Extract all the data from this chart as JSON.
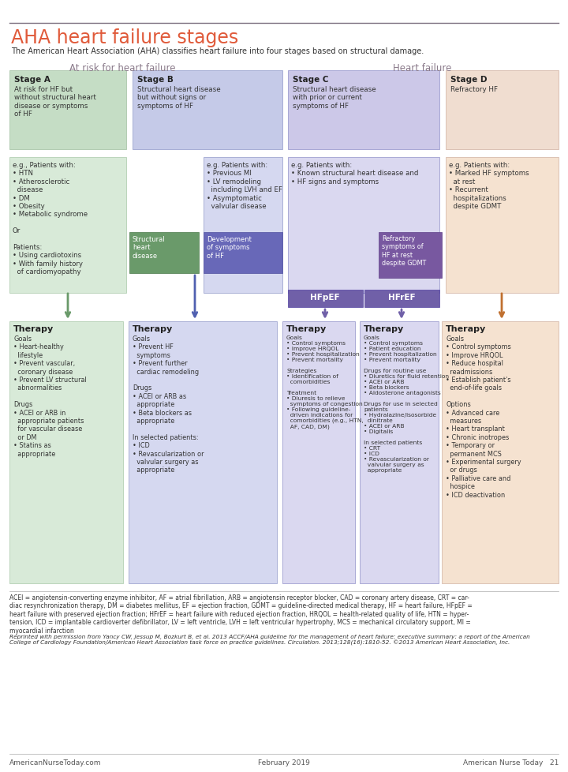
{
  "title": "AHA heart failure stages",
  "subtitle": "The American Heart Association (AHA) classifies heart failure into four stages based on structural damage.",
  "header_line_color": "#7a6e7e",
  "title_color": "#e05a3a",
  "subtitle_color": "#333333",
  "section_label_left": "At risk for heart failure",
  "section_label_right": "Heart failure",
  "section_label_color": "#8a7a8a",
  "bg_color": "#ffffff",
  "stage_boxes": [
    {
      "label": "Stage A",
      "desc": "At risk for HF but\nwithout structural heart\ndisease or symptoms\nof HF",
      "bg": "#c5ddc5",
      "border": "#a0bfa0"
    },
    {
      "label": "Stage B",
      "desc": "Structural heart disease\nbut without signs or\nsymptoms of HF",
      "bg": "#c5cae8",
      "border": "#9098c8"
    },
    {
      "label": "Stage C",
      "desc": "Structural heart disease\nwith prior or current\nsymptoms of HF",
      "bg": "#ccc8e8",
      "border": "#9090c8"
    },
    {
      "label": "Stage D",
      "desc": "Refractory HF",
      "bg": "#f0ddd0",
      "border": "#d0b0a0"
    }
  ],
  "struct_box": {
    "text": "Structural\nheart\ndisease",
    "bg": "#6a9a6a",
    "border": "#4a7a4a",
    "text_color": "#ffffff"
  },
  "dev_box": {
    "text": "Development\nof symptoms\nof HF",
    "bg": "#6868b8",
    "border": "#5050a0",
    "text_color": "#ffffff"
  },
  "refract_box": {
    "text": "Refractory\nsymptoms of\nHF at rest\ndespite GDMT",
    "bg": "#7858a0",
    "border": "#604088",
    "text_color": "#ffffff"
  },
  "hfpef_box": {
    "text": "HFpEF",
    "bg": "#7060a8",
    "border": "#5040a0",
    "text_color": "#ffffff"
  },
  "hfref_box": {
    "text": "HFrEF",
    "bg": "#7060a8",
    "border": "#5040a0",
    "text_color": "#ffffff"
  },
  "therapy_boxes": [
    {
      "title": "Therapy",
      "content": "Goals\n• Heart-healthy\n  lifestyle\n• Prevent vascular,\n  coronary disease\n• Prevent LV structural\n  abnormalities\n\nDrugs\n• ACEI or ARB in\n  appropriate patients\n  for vascular disease\n  or DM\n• Statins as\n  appropriate",
      "bg": "#d8ead8",
      "border": "#a8c8a8",
      "arrow_color": "#6a9a6a"
    },
    {
      "title": "Therapy",
      "content": "Goals\n• Prevent HF\n  symptoms\n• Prevent further\n  cardiac remodeling\n\nDrugs\n• ACEI or ARB as\n  appropriate\n• Beta blockers as\n  appropriate\n\nIn selected patients:\n• ICD\n• Revascularization or\n  valvular surgery as\n  appropriate",
      "bg": "#d5d8f0",
      "border": "#9098c8",
      "arrow_color": "#5060b0"
    },
    {
      "title": "Therapy",
      "content": "Goals\n• Control symptoms\n• Improve HRQOL\n• Prevent hospitalization\n• Prevent mortality\n\nStrategies\n• Identification of\n  comorbidities\n\nTreatment\n• Diuresis to relieve\n  symptoms of congestion\n• Following guideline-\n  driven indications for\n  comorbidities (e.g., HTN,\n  AF, CAD, DM)",
      "bg": "#dad8f0",
      "border": "#9090c8",
      "arrow_color": "#7060a8"
    },
    {
      "title": "Therapy",
      "content": "Goals\n• Control symptoms\n• Patient education\n• Prevent hospitalization\n• Prevent mortality\n\nDrugs for routine use\n• Diuretics for fluid retention\n• ACEI or ARB\n• Beta blockers\n• Aldosterone antagonists\n\nDrugs for use in selected\npatients\n• Hydralazine/isosorbide\n  dinitrate\n• ACEI or ARB\n• Digitalis\n\nIn selected patients\n• CRT\n• ICD\n• Revascularization or\n  valvular surgery as\n  appropriate",
      "bg": "#dad8f0",
      "border": "#9090c8",
      "arrow_color": "#7060a8"
    },
    {
      "title": "Therapy",
      "content": "Goals\n• Control symptoms\n• Improve HRQOL\n• Reduce hospital\n  readmissions\n• Establish patient's\n  end-of-life goals\n\nOptions\n• Advanced care\n  measures\n• Heart transplant\n• Chronic inotropes\n• Temporary or\n  permanent MCS\n• Experimental surgery\n  or drugs\n• Palliative care and\n  hospice\n• ICD deactivation",
      "bg": "#f5e2d0",
      "border": "#d0b0a0",
      "arrow_color": "#c07030"
    }
  ],
  "eg_boxes": [
    {
      "text": "e.g., Patients with:\n• HTN\n• Atherosclerotic\n  disease\n• DM\n• Obesity\n• Metabolic syndrome\n\nOr\n\nPatients:\n• Using cardiotoxins\n• With family history\n  of cardiomyopathy",
      "bg": "#d8ead8",
      "border": "#a8c8a8"
    },
    {
      "text": "e.g. Patients with:\n• Previous MI\n• LV remodeling\n  including LVH and EF\n• Asymptomatic\n  valvular disease",
      "bg": "#d5d8f0",
      "border": "#9098c8"
    },
    {
      "text": "e.g. Patients with:\n• Known structural heart disease and\n• HF signs and symptoms",
      "bg": "#dad8f0",
      "border": "#9090c8"
    },
    {
      "text": "e.g. Patients with:\n• Marked HF symptoms\n  at rest\n• Recurrent\n  hospitalizations\n  despite GDMT",
      "bg": "#f5e2d0",
      "border": "#d0b0a0"
    }
  ],
  "footnote": "ACEI = angiotensin-converting enzyme inhibitor, AF = atrial fibrillation, ARB = angiotensin receptor blocker, CAD = coronary artery disease, CRT = car-\ndiac resynchronization therapy, DM = diabetes mellitus, EF = ejection fraction, GDMT = guideline-directed medical therapy, HF = heart failure, HFpEF =\nheart failure with preserved ejection fraction; HFrEF = heart failure with reduced ejection fraction, HRQOL = health-related quality of life, HTN = hyper-\ntension, ICD = implantable cardioverter defibrillator, LV = left ventricle, LVH = left ventricular hypertrophy, MCS = mechanical circulatory support, MI =\nmyocardial infarction",
  "citation": "Reprinted with permission from Yancy CW, Jessup M, Bozkurt B, et al. 2013 ACCF/AHA guideline for the management of heart failure: executive summary: a report of the American\nCollege of Cardiology Foundation/American Heart Association task force on practice guidelines. Circulation. 2013;128(16):1810-52. ©2013 American Heart Association, Inc.",
  "footer_left": "AmericanNurseToday.com",
  "footer_center": "February 2019",
  "footer_right": "American Nurse Today   21"
}
